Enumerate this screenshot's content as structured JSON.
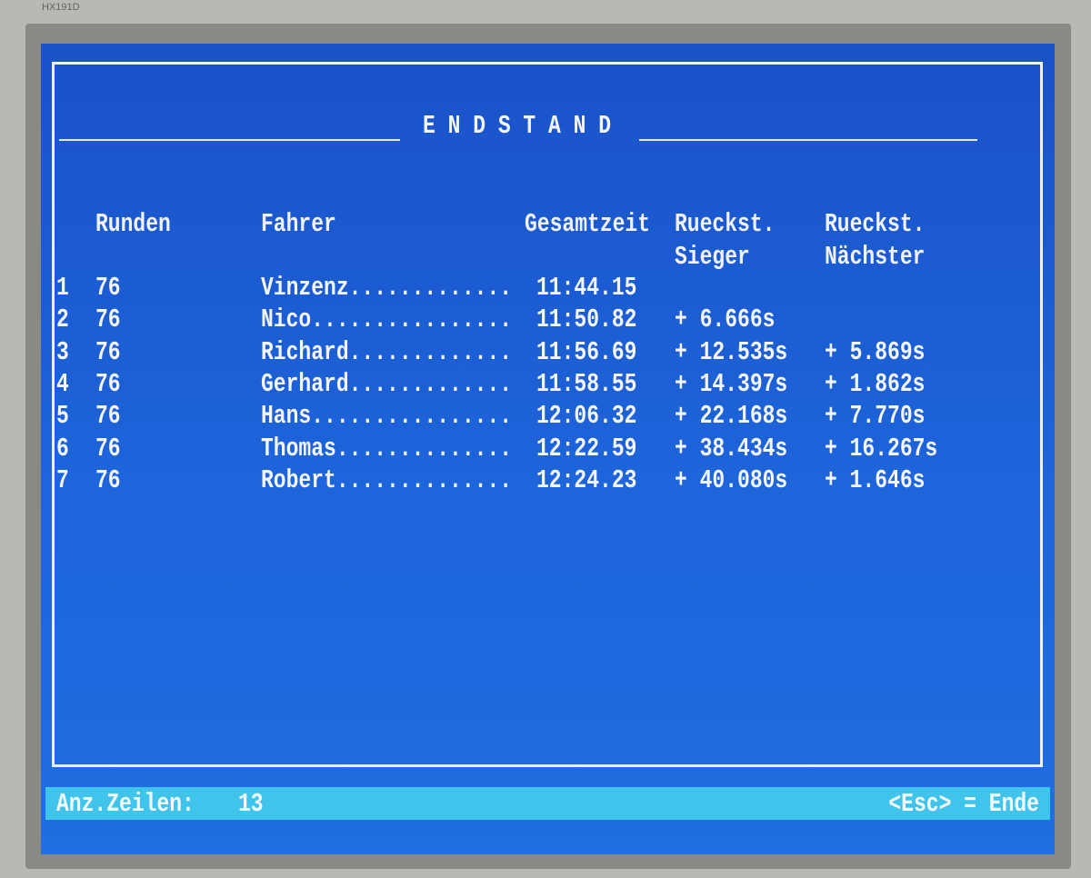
{
  "monitor_label": "HX191D",
  "title": "E N D S T A N D",
  "headers": {
    "laps": "Runden",
    "driver": "Fahrer",
    "total": "Gesamtzeit",
    "gap_winner": [
      "Rueckst.",
      "Sieger"
    ],
    "gap_next": [
      "Rueckst.",
      "Nächster"
    ]
  },
  "rows": [
    {
      "pos": "1",
      "laps": "76",
      "driver": "Vinzenz.............",
      "total": "11:44.15",
      "gap_winner": "",
      "gap_next": ""
    },
    {
      "pos": "2",
      "laps": "76",
      "driver": "Nico................",
      "total": "11:50.82",
      "gap_winner": "+ 6.666s",
      "gap_next": ""
    },
    {
      "pos": "3",
      "laps": "76",
      "driver": "Richard.............",
      "total": "11:56.69",
      "gap_winner": "+ 12.535s",
      "gap_next": "+ 5.869s"
    },
    {
      "pos": "4",
      "laps": "76",
      "driver": "Gerhard.............",
      "total": "11:58.55",
      "gap_winner": "+ 14.397s",
      "gap_next": "+ 1.862s"
    },
    {
      "pos": "5",
      "laps": "76",
      "driver": "Hans................",
      "total": "12:06.32",
      "gap_winner": "+ 22.168s",
      "gap_next": "+ 7.770s"
    },
    {
      "pos": "6",
      "laps": "76",
      "driver": "Thomas..............",
      "total": "12:22.59",
      "gap_winner": "+ 38.434s",
      "gap_next": "+ 16.267s"
    },
    {
      "pos": "7",
      "laps": "76",
      "driver": "Robert..............",
      "total": "12:24.23",
      "gap_winner": "+ 40.080s",
      "gap_next": "+ 1.646s"
    }
  ],
  "status": {
    "rows_label": "Anz.Zeilen:",
    "rows_value": "13",
    "exit_hint": "<Esc> = Ende"
  },
  "colors": {
    "screen": "#1e5fd6",
    "status_bar": "#40c4ec",
    "text": "#f3f5ff"
  }
}
